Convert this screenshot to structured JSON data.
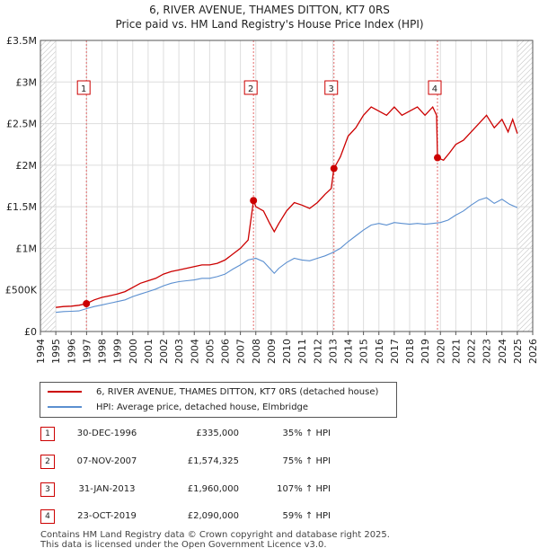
{
  "header": {
    "title": "6, RIVER AVENUE, THAMES DITTON, KT7 0RS",
    "subtitle": "Price paid vs. HM Land Registry's House Price Index (HPI)"
  },
  "chart_data": {
    "type": "line",
    "xlim": [
      1994,
      2026
    ],
    "ylim": [
      0,
      3500000
    ],
    "x_ticks": [
      "1994",
      "1995",
      "1996",
      "1997",
      "1998",
      "1999",
      "2000",
      "2001",
      "2002",
      "2003",
      "2004",
      "2005",
      "2006",
      "2007",
      "2008",
      "2009",
      "2010",
      "2011",
      "2012",
      "2013",
      "2014",
      "2015",
      "2016",
      "2017",
      "2018",
      "2019",
      "2020",
      "2021",
      "2022",
      "2023",
      "2024",
      "2025",
      "2026"
    ],
    "y_ticks": [
      {
        "value": 0,
        "label": "£0"
      },
      {
        "value": 500000,
        "label": "£500K"
      },
      {
        "value": 1000000,
        "label": "£1M"
      },
      {
        "value": 1500000,
        "label": "£1.5M"
      },
      {
        "value": 2000000,
        "label": "£2M"
      },
      {
        "value": 2500000,
        "label": "£2.5M"
      },
      {
        "value": 3000000,
        "label": "£3M"
      },
      {
        "value": 3500000,
        "label": "£3.5M"
      }
    ],
    "series": [
      {
        "name": "6, RIVER AVENUE, THAMES DITTON, KT7 0RS (detached house)",
        "color": "#cc0000",
        "points": [
          [
            1995.0,
            290000
          ],
          [
            1995.5,
            300000
          ],
          [
            1996.0,
            305000
          ],
          [
            1996.5,
            315000
          ],
          [
            1996.99,
            335000
          ],
          [
            1997.5,
            380000
          ],
          [
            1998.0,
            410000
          ],
          [
            1998.5,
            430000
          ],
          [
            1999.0,
            450000
          ],
          [
            1999.5,
            480000
          ],
          [
            2000.0,
            530000
          ],
          [
            2000.5,
            580000
          ],
          [
            2001.0,
            610000
          ],
          [
            2001.5,
            640000
          ],
          [
            2002.0,
            690000
          ],
          [
            2002.5,
            720000
          ],
          [
            2003.0,
            740000
          ],
          [
            2003.5,
            760000
          ],
          [
            2004.0,
            780000
          ],
          [
            2004.5,
            800000
          ],
          [
            2005.0,
            800000
          ],
          [
            2005.5,
            820000
          ],
          [
            2006.0,
            860000
          ],
          [
            2006.5,
            930000
          ],
          [
            2007.0,
            1000000
          ],
          [
            2007.5,
            1100000
          ],
          [
            2007.85,
            1574325
          ],
          [
            2008.0,
            1500000
          ],
          [
            2008.5,
            1450000
          ],
          [
            2008.9,
            1300000
          ],
          [
            2009.2,
            1200000
          ],
          [
            2009.5,
            1300000
          ],
          [
            2010.0,
            1450000
          ],
          [
            2010.5,
            1550000
          ],
          [
            2011.0,
            1520000
          ],
          [
            2011.5,
            1480000
          ],
          [
            2012.0,
            1550000
          ],
          [
            2012.5,
            1650000
          ],
          [
            2012.9,
            1720000
          ],
          [
            2013.08,
            1960000
          ],
          [
            2013.5,
            2100000
          ],
          [
            2014.0,
            2350000
          ],
          [
            2014.5,
            2450000
          ],
          [
            2015.0,
            2600000
          ],
          [
            2015.5,
            2700000
          ],
          [
            2016.0,
            2650000
          ],
          [
            2016.5,
            2600000
          ],
          [
            2017.0,
            2700000
          ],
          [
            2017.5,
            2600000
          ],
          [
            2018.0,
            2650000
          ],
          [
            2018.5,
            2700000
          ],
          [
            2019.0,
            2600000
          ],
          [
            2019.5,
            2700000
          ],
          [
            2019.75,
            2600000
          ],
          [
            2019.81,
            2090000
          ],
          [
            2020.2,
            2060000
          ],
          [
            2020.6,
            2150000
          ],
          [
            2021.0,
            2250000
          ],
          [
            2021.5,
            2300000
          ],
          [
            2022.0,
            2400000
          ],
          [
            2022.5,
            2500000
          ],
          [
            2023.0,
            2600000
          ],
          [
            2023.5,
            2450000
          ],
          [
            2024.0,
            2550000
          ],
          [
            2024.4,
            2400000
          ],
          [
            2024.7,
            2550000
          ],
          [
            2025.0,
            2380000
          ]
        ]
      },
      {
        "name": "HPI: Average price, detached house, Elmbridge",
        "color": "#5b8fd0",
        "points": [
          [
            1995.0,
            230000
          ],
          [
            1995.5,
            240000
          ],
          [
            1996.0,
            243000
          ],
          [
            1996.5,
            247000
          ],
          [
            1997.0,
            275000
          ],
          [
            1997.5,
            300000
          ],
          [
            1998.0,
            320000
          ],
          [
            1998.5,
            340000
          ],
          [
            1999.0,
            360000
          ],
          [
            1999.5,
            380000
          ],
          [
            2000.0,
            420000
          ],
          [
            2000.5,
            450000
          ],
          [
            2001.0,
            480000
          ],
          [
            2001.5,
            510000
          ],
          [
            2002.0,
            550000
          ],
          [
            2002.5,
            580000
          ],
          [
            2003.0,
            600000
          ],
          [
            2003.5,
            610000
          ],
          [
            2004.0,
            620000
          ],
          [
            2004.5,
            640000
          ],
          [
            2005.0,
            640000
          ],
          [
            2005.5,
            660000
          ],
          [
            2006.0,
            690000
          ],
          [
            2006.5,
            750000
          ],
          [
            2007.0,
            800000
          ],
          [
            2007.5,
            860000
          ],
          [
            2008.0,
            880000
          ],
          [
            2008.5,
            840000
          ],
          [
            2008.9,
            760000
          ],
          [
            2009.2,
            700000
          ],
          [
            2009.5,
            760000
          ],
          [
            2010.0,
            830000
          ],
          [
            2010.5,
            880000
          ],
          [
            2011.0,
            860000
          ],
          [
            2011.5,
            850000
          ],
          [
            2012.0,
            880000
          ],
          [
            2012.5,
            910000
          ],
          [
            2013.0,
            950000
          ],
          [
            2013.5,
            1000000
          ],
          [
            2014.0,
            1080000
          ],
          [
            2014.5,
            1150000
          ],
          [
            2015.0,
            1220000
          ],
          [
            2015.5,
            1280000
          ],
          [
            2016.0,
            1300000
          ],
          [
            2016.5,
            1280000
          ],
          [
            2017.0,
            1310000
          ],
          [
            2017.5,
            1300000
          ],
          [
            2018.0,
            1290000
          ],
          [
            2018.5,
            1300000
          ],
          [
            2019.0,
            1290000
          ],
          [
            2019.5,
            1300000
          ],
          [
            2020.0,
            1310000
          ],
          [
            2020.5,
            1340000
          ],
          [
            2021.0,
            1400000
          ],
          [
            2021.5,
            1450000
          ],
          [
            2022.0,
            1520000
          ],
          [
            2022.5,
            1580000
          ],
          [
            2023.0,
            1610000
          ],
          [
            2023.5,
            1540000
          ],
          [
            2024.0,
            1590000
          ],
          [
            2024.5,
            1530000
          ],
          [
            2025.0,
            1490000
          ]
        ]
      }
    ],
    "sales": [
      {
        "label": "1",
        "x": 1996.99,
        "y": 335000
      },
      {
        "label": "2",
        "x": 2007.85,
        "y": 1574325
      },
      {
        "label": "3",
        "x": 2013.08,
        "y": 1960000
      },
      {
        "label": "4",
        "x": 2019.81,
        "y": 2090000
      }
    ],
    "hatch_regions": [
      [
        1994,
        1995
      ],
      [
        2025,
        2026
      ]
    ]
  },
  "legend": {
    "items": [
      {
        "label": "6, RIVER AVENUE, THAMES DITTON, KT7 0RS (detached house)",
        "color": "#cc0000"
      },
      {
        "label": "HPI: Average price, detached house, Elmbridge",
        "color": "#5b8fd0"
      }
    ]
  },
  "transactions": [
    {
      "num": "1",
      "date": "30-DEC-1996",
      "price": "£335,000",
      "hpi": "35% ↑ HPI"
    },
    {
      "num": "2",
      "date": "07-NOV-2007",
      "price": "£1,574,325",
      "hpi": "75% ↑ HPI"
    },
    {
      "num": "3",
      "date": "31-JAN-2013",
      "price": "£1,960,000",
      "hpi": "107% ↑ HPI"
    },
    {
      "num": "4",
      "date": "23-OCT-2019",
      "price": "£2,090,000",
      "hpi": "59% ↑ HPI"
    }
  ],
  "footer": {
    "line1": "Contains HM Land Registry data © Crown copyright and database right 2025.",
    "line2": "This data is licensed under the Open Government Licence v3.0."
  }
}
